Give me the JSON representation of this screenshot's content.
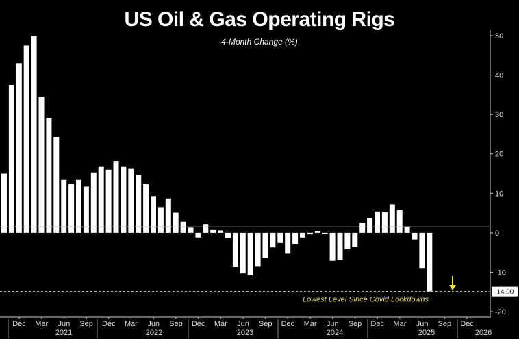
{
  "chart_data": {
    "type": "bar",
    "title": "US Oil & Gas Operating Rigs",
    "subtitle": "4-Month Change (%)",
    "ylim": [
      -20,
      50
    ],
    "yticks": [
      50,
      40,
      30,
      20,
      10,
      0,
      -10,
      -20
    ],
    "reference_line": 1.5,
    "last_value_label": "-14.90",
    "last_value": -14.9,
    "annotation": "Lowest Level Since Covid Lockdowns",
    "values": [
      15,
      37.5,
      43,
      47.5,
      50,
      34.5,
      29,
      24.3,
      13.4,
      12.3,
      13.4,
      11.7,
      15.3,
      16.7,
      16,
      18.2,
      16.7,
      16.2,
      14.7,
      12.3,
      9.3,
      6.5,
      8.7,
      5.1,
      2.8,
      1.3,
      -1.2,
      2.2,
      0.7,
      0.6,
      -1.3,
      -8.7,
      -10.3,
      -10.8,
      -8.6,
      -6.3,
      -3.7,
      -2.6,
      -5.3,
      -2.9,
      -1.2,
      -0.4,
      0.4,
      -0.3,
      -7.1,
      -6.9,
      -4.2,
      -3.5,
      2.5,
      3.8,
      5.4,
      5.2,
      7.2,
      5.7,
      1.6,
      -1.7,
      -9.1,
      -14.9
    ],
    "x_month_labels": [
      "Dec",
      "Mar",
      "Jun",
      "Sep",
      "Dec",
      "Mar",
      "Jun",
      "Sep",
      "Dec",
      "Mar",
      "Jun",
      "Sep",
      "Dec",
      "Mar",
      "Jun",
      "Sep",
      "Dec",
      "Mar",
      "Jun",
      "Sep",
      "Dec"
    ],
    "x_year_labels": [
      "2021",
      "2022",
      "2023",
      "2024",
      "2025",
      "2026"
    ]
  }
}
